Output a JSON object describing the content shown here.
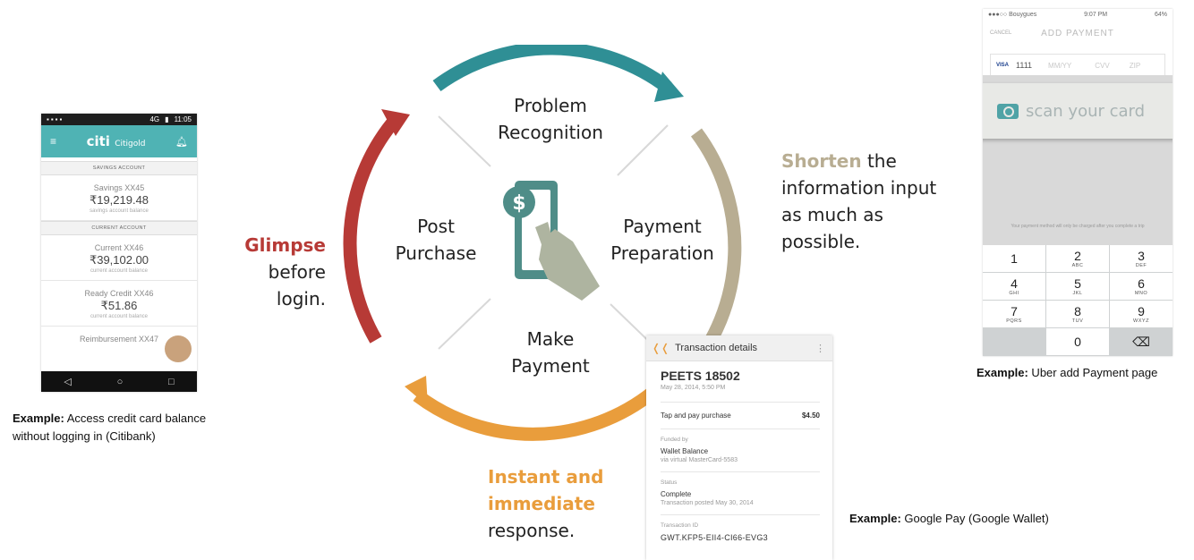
{
  "cycle": {
    "stages": [
      {
        "id": "problem",
        "line1": "Problem",
        "line2": "Recognition"
      },
      {
        "id": "preparation",
        "line1": "Payment",
        "line2": "Preparation"
      },
      {
        "id": "payment",
        "line1": "Make",
        "line2": "Payment"
      },
      {
        "id": "post",
        "line1": "Post",
        "line2": "Purchase"
      }
    ],
    "arc_colors": {
      "top": "#2f8f95",
      "right": "#b8ad92",
      "bottom": "#e99d3c",
      "left": "#b73a36"
    },
    "center_icon": "phone-dollar-tap-icon"
  },
  "callouts": {
    "glimpse": {
      "highlight": "Glimpse",
      "line2": "before",
      "line3": "login.",
      "color": "#b73a36"
    },
    "shorten": {
      "highlight": "Shorten",
      "rest1": " the",
      "line2": "information input",
      "line3": "as much as",
      "line4": "possible.",
      "color": "#b8ad92"
    },
    "instant": {
      "line1": "Instant and",
      "line2": "immediate",
      "line3": "response.",
      "color": "#e99d3c"
    }
  },
  "captions": {
    "citi": {
      "label": "Example:",
      "text1": " Access credit card balance",
      "text2": "without logging in (Citibank)"
    },
    "uber": {
      "label": "Example:",
      "text": "  Uber add Payment page"
    },
    "google": {
      "label": "Example:",
      "text": "  Google Pay (Google Wallet)"
    }
  },
  "citi_screen": {
    "status_time": "11:05",
    "status_signal": "4G",
    "brand": "citi",
    "brand_sub": "Citigold",
    "sections": {
      "savings": "SAVINGS ACCOUNT",
      "current": "CURRENT ACCOUNT"
    },
    "accounts": [
      {
        "name": "Savings XX45",
        "amount": "₹19,219.48",
        "sub": "savings account balance"
      },
      {
        "name": "Current XX46",
        "amount": "₹39,102.00",
        "sub": "current account balance"
      },
      {
        "name": "Ready Credit XX46",
        "amount": "₹51.86",
        "sub": "current account balance"
      },
      {
        "name": "Reimbursement XX47",
        "amount": "",
        "sub": ""
      }
    ],
    "nav": [
      "◁",
      "○",
      "□"
    ]
  },
  "uber_screen": {
    "carrier": "●●●○○ Bouygues",
    "time": "9:07 PM",
    "battery": "64%",
    "cancel": "CANCEL",
    "title": "ADD PAYMENT",
    "card_brand": "VISA",
    "card_digits": "1111",
    "expiry_placeholder": "MM/YY",
    "cvv_placeholder": "CVV",
    "zip_placeholder": "ZIP",
    "scan_label": "scan your card",
    "fineprint": "Your payment method will only be charged after you complete a trip",
    "keys": [
      {
        "d": "1",
        "l": ""
      },
      {
        "d": "2",
        "l": "ABC"
      },
      {
        "d": "3",
        "l": "DEF"
      },
      {
        "d": "4",
        "l": "GHI"
      },
      {
        "d": "5",
        "l": "JKL"
      },
      {
        "d": "6",
        "l": "MNO"
      },
      {
        "d": "7",
        "l": "PQRS"
      },
      {
        "d": "8",
        "l": "TUV"
      },
      {
        "d": "9",
        "l": "WXYZ"
      },
      {
        "d": "",
        "l": ""
      },
      {
        "d": "0",
        "l": ""
      },
      {
        "d": "⌫",
        "l": ""
      }
    ]
  },
  "wallet_screen": {
    "header": "Transaction details",
    "merchant": "PEETS 18502",
    "date": "May 28, 2014, 5:50 PM",
    "line_label": "Tap and pay purchase",
    "line_amount": "$4.50",
    "funded_label": "Funded by",
    "funded_value": "Wallet Balance",
    "funded_sub": "via virtual MasterCard-5583",
    "status_label": "Status",
    "status_value": "Complete",
    "status_sub": "Transaction posted May 30, 2014",
    "txn_label": "Transaction ID",
    "txn_value": "GWT.KFP5-EII4-CI66-EVG3"
  }
}
